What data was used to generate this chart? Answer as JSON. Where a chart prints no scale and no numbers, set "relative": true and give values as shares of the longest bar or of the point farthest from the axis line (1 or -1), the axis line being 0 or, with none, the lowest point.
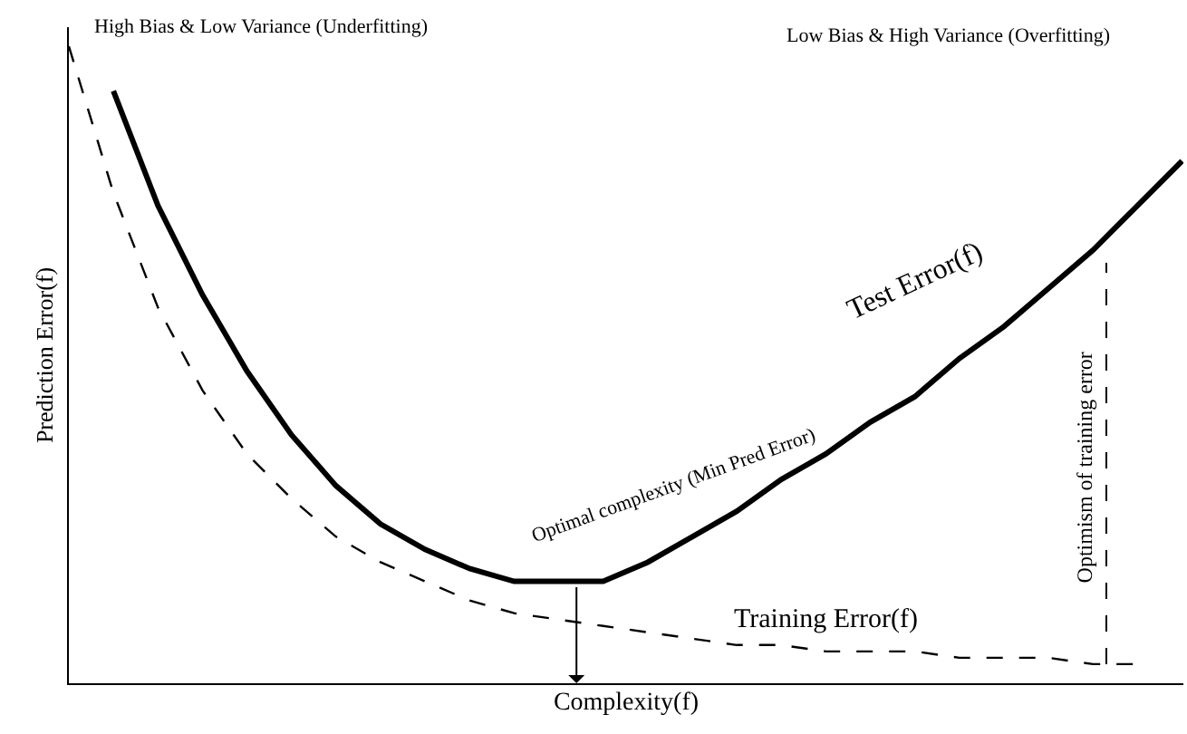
{
  "chart_data": {
    "type": "line",
    "relative": true,
    "xlabel": "Complexity(f)",
    "ylabel": "Prediction Error(f)",
    "marker": "none",
    "categories": [
      null,
      null,
      null,
      null,
      null,
      null,
      null,
      null,
      null,
      null,
      null,
      null,
      null,
      null,
      null,
      null,
      null,
      null,
      null,
      null,
      null,
      null,
      null,
      null,
      null,
      null
    ],
    "series": [
      {
        "color": "#000000",
        "line_style": "solid",
        "values": [
          null,
          0.93,
          0.75,
          0.61,
          0.49,
          0.39,
          0.31,
          0.25,
          0.21,
          0.18,
          0.16,
          0.16,
          0.16,
          0.19,
          0.23,
          0.27,
          0.32,
          0.36,
          0.41,
          0.45,
          0.51,
          0.56,
          0.62,
          0.68,
          0.75,
          0.82
        ]
      },
      {
        "color": "#000000",
        "line_style": "dashed",
        "values": [
          1,
          0.77,
          0.59,
          0.46,
          0.36,
          0.29,
          0.23,
          0.19,
          0.16,
          0.13,
          0.11,
          0.1,
          0.09,
          0.08,
          0.07,
          0.06,
          0.06,
          0.05,
          0.05,
          0.05,
          0.04,
          0.04,
          0.04,
          0.03,
          0.03,
          null
        ]
      }
    ],
    "annotations": [
      "High Bias & Low Variance (Underfitting)",
      "Low Bias & High Variance (Overfitting)",
      "Optimal complexity (Min Pred Error)",
      "Test Error(f)",
      "Training Error(f)",
      "Optimism of training error"
    ]
  }
}
